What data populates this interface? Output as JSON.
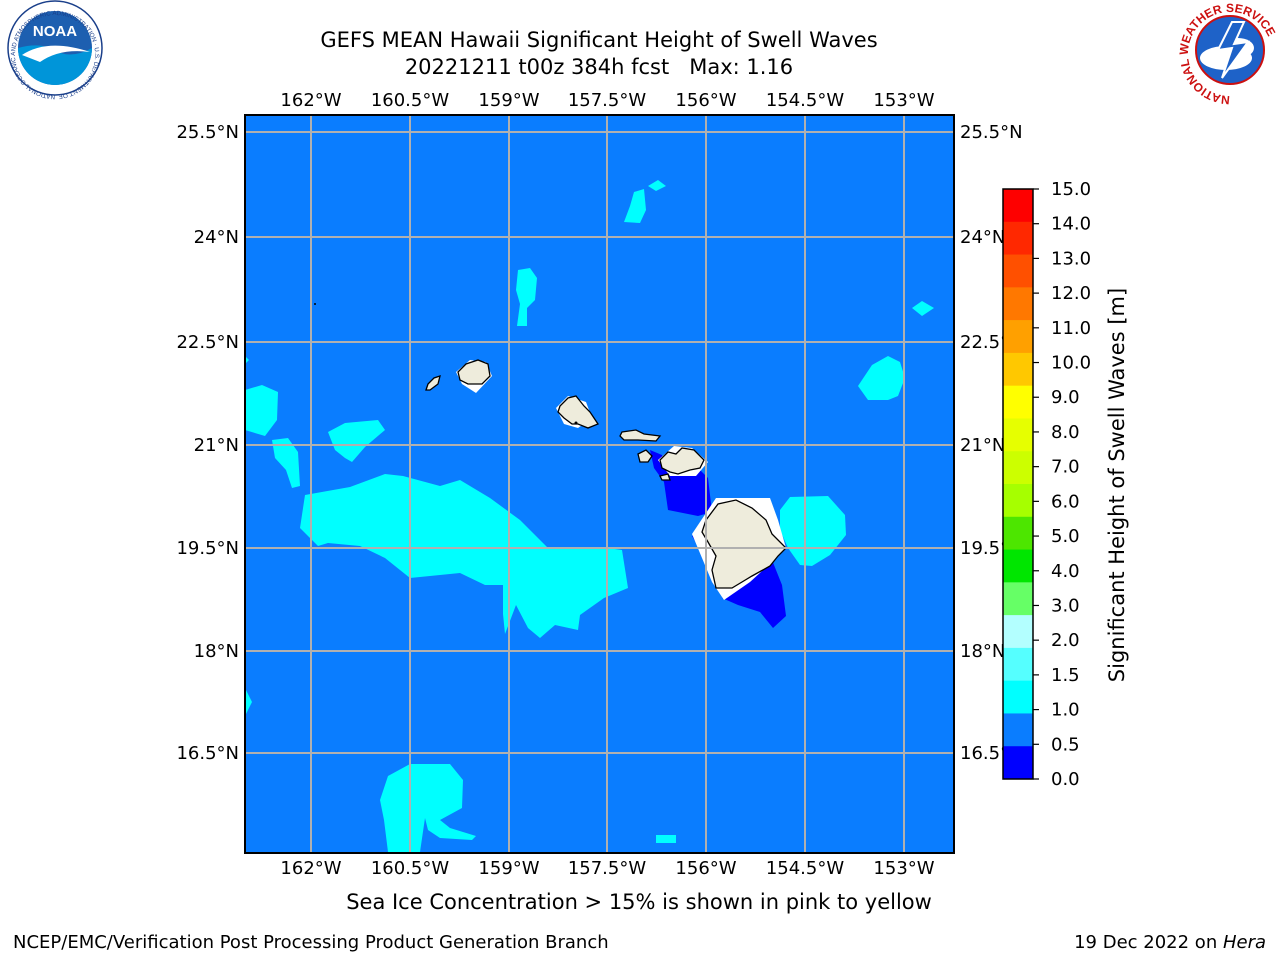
{
  "header": {
    "title_line1": "GEFS MEAN Hawaii Significant Height of Swell Waves",
    "title_line2": "20221211 t00z 384h fcst   Max: 1.16"
  },
  "logos": {
    "noaa_text": "NOAA",
    "noaa_ring_text": "NATIONAL OCEANIC AND ATMOSPHERIC ADMINISTRATION · U.S. DEPARTMENT OF COMMERCE",
    "nws_ring_text": "NATIONAL WEATHER SERVICE"
  },
  "map": {
    "lon_labels": [
      "162°W",
      "160.5°W",
      "159°W",
      "157.5°W",
      "156°W",
      "154.5°W",
      "153°W"
    ],
    "lat_labels": [
      "25.5°N",
      "24°N",
      "22.5°N",
      "21°N",
      "19.5°N",
      "18°N",
      "16.5°N"
    ],
    "lon_values": [
      -162,
      -160.5,
      -159,
      -157.5,
      -156,
      -154.5,
      -153
    ],
    "lat_values": [
      25.5,
      24,
      22.5,
      21,
      19.5,
      18,
      16.5
    ],
    "grid": true,
    "background_color": "#0a7dff",
    "land_color": "#eeecdc"
  },
  "colorbar": {
    "label": "Significant Height of Swell Waves [m]",
    "ticks": [
      "15.0",
      "14.0",
      "13.0",
      "12.0",
      "11.0",
      "10.0",
      "9.0",
      "8.0",
      "7.0",
      "6.0",
      "5.0",
      "4.0",
      "3.0",
      "2.0",
      "1.5",
      "1.0",
      "0.5",
      "0.0"
    ],
    "colors": [
      "#fe0000",
      "#ff2800",
      "#ff5000",
      "#ff7800",
      "#ffa000",
      "#ffc800",
      "#ffff00",
      "#e6ff00",
      "#ccff00",
      "#a6ff00",
      "#4de600",
      "#00e600",
      "#66ff66",
      "#b3ffff",
      "#55ffff",
      "#00ffff",
      "#0a7dff",
      "#0000ff"
    ]
  },
  "chart_data": {
    "type": "heatmap",
    "title": "GEFS MEAN Hawaii Significant Height of Swell Waves",
    "subtitle": "20221211 t00z 384h fcst   Max: 1.16",
    "units": "m",
    "max_value": 1.16,
    "levels": [
      0.0,
      0.5,
      1.0,
      1.5,
      2.0,
      3.0,
      4.0,
      5.0,
      6.0,
      7.0,
      8.0,
      9.0,
      10.0,
      11.0,
      12.0,
      13.0,
      14.0,
      15.0
    ],
    "x_range_lon": [
      -163,
      -152.2
    ],
    "y_range_lat": [
      15.0,
      25.7
    ]
  },
  "footer": {
    "note": "Sea Ice Concentration > 15% is shown in pink to yellow",
    "left": "NCEP/EMC/Verification Post Processing Product Generation Branch",
    "right_date": "19 Dec 2022 on ",
    "right_host": "Hera"
  }
}
